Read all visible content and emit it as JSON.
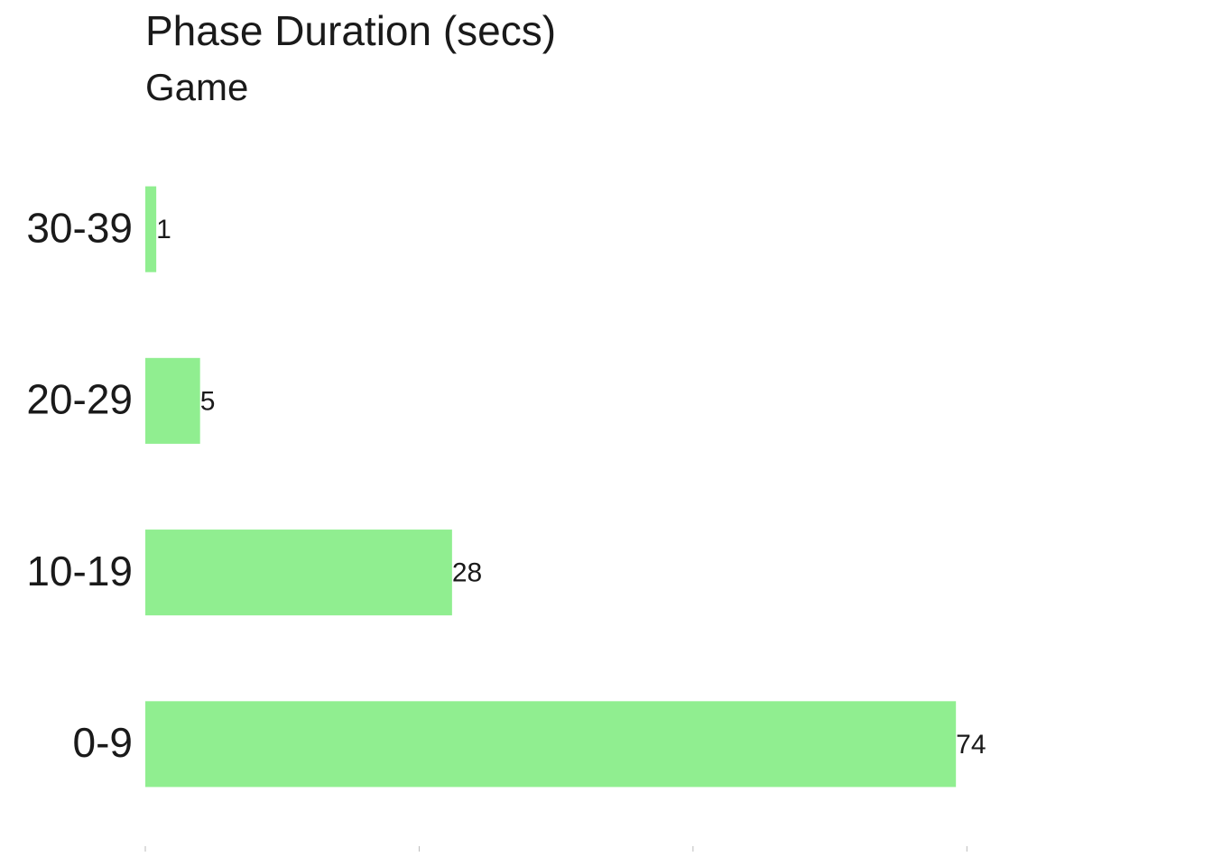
{
  "chart_data": {
    "type": "barh",
    "title": "Phase Duration (secs)",
    "subtitle": "Game",
    "categories": [
      "0-9",
      "10-19",
      "20-29",
      "30-39"
    ],
    "values": [
      74,
      28,
      5,
      1
    ],
    "color": "#90ee90",
    "xlim": [
      0,
      80
    ],
    "xticks": [
      0,
      25,
      50,
      75
    ],
    "grid": false
  }
}
